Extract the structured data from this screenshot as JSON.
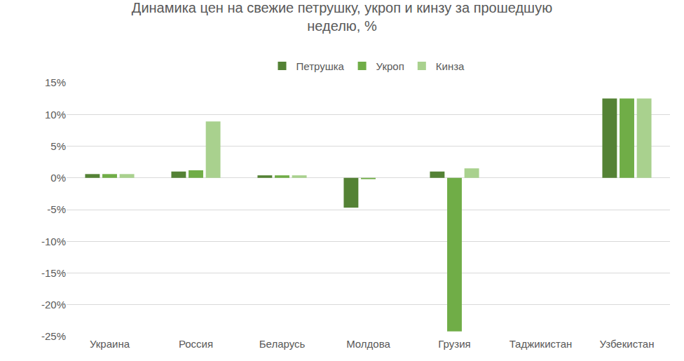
{
  "chart_data": {
    "type": "bar",
    "title": "Динамика цен на свежие петрушку, укроп и кинзу за прошедшую неделю, %",
    "categories": [
      "Украина",
      "Россия",
      "Беларусь",
      "Молдова",
      "Грузия",
      "Таджикистан",
      "Узбекистан"
    ],
    "series": [
      {
        "name": "Петрушка",
        "color": "#548235",
        "values": [
          0.6,
          1.0,
          0.4,
          -4.7,
          1.0,
          0,
          12.5
        ]
      },
      {
        "name": "Укроп",
        "color": "#70ad47",
        "values": [
          0.6,
          1.2,
          0.4,
          -0.2,
          -24.2,
          0,
          12.5
        ]
      },
      {
        "name": "Кинза",
        "color": "#a9d18e",
        "values": [
          0.6,
          8.9,
          0.4,
          0,
          1.5,
          0,
          12.5
        ]
      }
    ],
    "ylim": [
      -25,
      15
    ],
    "yticks": [
      {
        "value": -25,
        "label": "-25%"
      },
      {
        "value": -20,
        "label": "-20%"
      },
      {
        "value": -15,
        "label": "-15%"
      },
      {
        "value": -10,
        "label": "-10%"
      },
      {
        "value": -5,
        "label": "-5%"
      },
      {
        "value": 0,
        "label": "0%"
      },
      {
        "value": 5,
        "label": "5%"
      },
      {
        "value": 10,
        "label": "10%"
      },
      {
        "value": 15,
        "label": "15%"
      }
    ],
    "grid": true,
    "legend": "top"
  }
}
